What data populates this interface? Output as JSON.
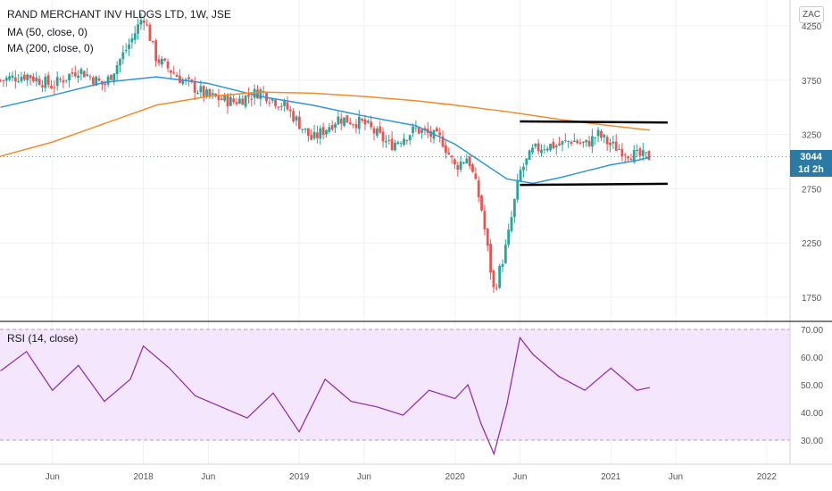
{
  "header": {
    "symbol_line": "RAND MERCHANT INV HLDGS LTD, 1W, JSE",
    "ma50_label": "MA (50, close, 0)",
    "ma200_label": "MA (200, close, 0)",
    "currency": "ZAC"
  },
  "price_tag": {
    "price": "3044",
    "countdown": "1d 2h"
  },
  "rsi_label": "RSI (14, close)",
  "colors": {
    "up": "#26a69a",
    "down": "#ef5350",
    "ma50": "#2e96d6",
    "ma200": "#f28c28",
    "rsi": "#8e24aa",
    "rsi_band": "#f3e6fd",
    "pattern": "#000000",
    "last_line": "#2a9d8f"
  },
  "chart_data": [
    {
      "type": "candlestick",
      "title": "RAND MERCHANT INV HLDGS LTD, 1W, JSE",
      "y_ticks": [
        "4250",
        "3750",
        "3250",
        "2750",
        "2250",
        "1750"
      ],
      "y_tick_values": [
        4250,
        3750,
        3250,
        2750,
        2250,
        1750
      ],
      "x_ticks": [
        "Jun",
        "2018",
        "Jun",
        "2019",
        "Jun",
        "2020",
        "Jun",
        "2021",
        "Jun",
        "2022"
      ],
      "x_tick_dates": [
        "2017-06",
        "2018-01",
        "2018-06",
        "2019-01",
        "2019-06",
        "2020-01",
        "2020-06",
        "2021-01",
        "2021-06",
        "2022-01"
      ],
      "close_series_dates": [
        "2017-02",
        "2017-04",
        "2017-06",
        "2017-08",
        "2017-10",
        "2017-12",
        "2018-01",
        "2018-02",
        "2018-04",
        "2018-06",
        "2018-08",
        "2018-10",
        "2018-12",
        "2019-02",
        "2019-04",
        "2019-06",
        "2019-08",
        "2019-10",
        "2019-12",
        "2020-01",
        "2020-02",
        "2020-03",
        "2020-04",
        "2020-05",
        "2020-06",
        "2020-07",
        "2020-08",
        "2020-09",
        "2020-10",
        "2020-11",
        "2020-12",
        "2021-01",
        "2021-02",
        "2021-03",
        "2021-04"
      ],
      "close_series_values": [
        3750,
        3800,
        3700,
        3850,
        3700,
        4100,
        4350,
        3950,
        3750,
        3600,
        3550,
        3650,
        3500,
        3200,
        3400,
        3350,
        3150,
        3300,
        3200,
        2950,
        3050,
        2600,
        1800,
        2250,
        2900,
        3100,
        3150,
        3150,
        3200,
        3150,
        3250,
        3150,
        3100,
        3050,
        3044
      ],
      "series": [
        {
          "name": "MA (50, close, 0)",
          "dates": [
            "2017-02",
            "2017-06",
            "2017-10",
            "2018-02",
            "2018-06",
            "2018-10",
            "2019-02",
            "2019-06",
            "2019-10",
            "2020-01",
            "2020-03",
            "2020-05",
            "2020-07",
            "2020-09",
            "2020-11",
            "2021-01",
            "2021-03",
            "2021-04"
          ],
          "values": [
            3500,
            3610,
            3730,
            3780,
            3720,
            3600,
            3520,
            3420,
            3330,
            3160,
            3000,
            2840,
            2800,
            2850,
            2910,
            2970,
            3010,
            3040
          ]
        },
        {
          "name": "MA (200, close, 0)",
          "dates": [
            "2017-02",
            "2017-06",
            "2017-10",
            "2018-02",
            "2018-06",
            "2018-10",
            "2019-02",
            "2019-06",
            "2019-10",
            "2020-01",
            "2020-05",
            "2020-09",
            "2021-01",
            "2021-04"
          ],
          "values": [
            3050,
            3180,
            3350,
            3520,
            3600,
            3640,
            3630,
            3600,
            3560,
            3520,
            3460,
            3390,
            3330,
            3290
          ]
        }
      ],
      "annotations": {
        "upper_trendline": {
          "start": [
            "2020-06",
            3370
          ],
          "end": [
            "2021-04",
            3360
          ]
        },
        "lower_trendline": {
          "start": [
            "2020-06",
            2785
          ],
          "end": [
            "2021-04",
            2795
          ]
        },
        "last_price": 3044
      }
    },
    {
      "type": "line",
      "title": "RSI (14, close)",
      "y_ticks": [
        "70.00",
        "60.00",
        "50.00",
        "40.00",
        "30.00"
      ],
      "y_tick_values": [
        70,
        60,
        50,
        40,
        30
      ],
      "band": [
        30,
        70
      ],
      "x": [
        "2017-02",
        "2017-04",
        "2017-06",
        "2017-08",
        "2017-10",
        "2017-12",
        "2018-01",
        "2018-03",
        "2018-05",
        "2018-07",
        "2018-09",
        "2018-11",
        "2019-01",
        "2019-03",
        "2019-05",
        "2019-07",
        "2019-09",
        "2019-11",
        "2020-01",
        "2020-02",
        "2020-03",
        "2020-04",
        "2020-05",
        "2020-06",
        "2020-07",
        "2020-09",
        "2020-11",
        "2021-01",
        "2021-03",
        "2021-04"
      ],
      "values": [
        55,
        62,
        48,
        57,
        44,
        52,
        64,
        56,
        46,
        42,
        38,
        47,
        33,
        52,
        44,
        42,
        39,
        48,
        45,
        50,
        36,
        25,
        43,
        67,
        61,
        53,
        48,
        56,
        48,
        49
      ]
    }
  ]
}
